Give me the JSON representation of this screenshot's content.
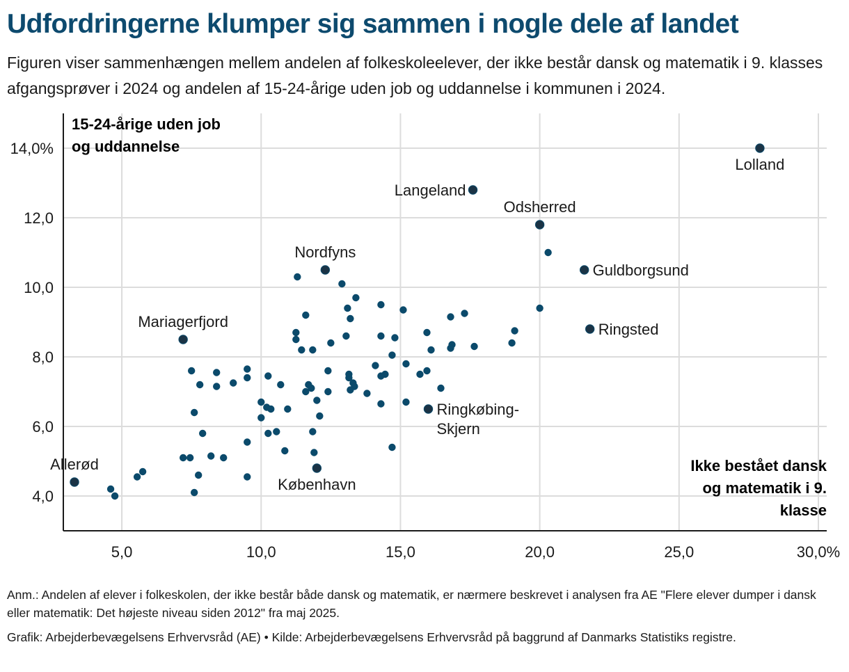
{
  "title": "Udfordringerne klumper sig sammen i nogle dele af landet",
  "subtitle": "Figuren viser sammenhængen mellem andelen af folkeskoleelever, der ikke består dansk og matematik i 9. klasses afgangsprøver i 2024 og andelen af 15-24-årige uden job og uddannelse i kommunen i 2024.",
  "note": "Anm.: Andelen af elever i folkeskolen, der ikke består både dansk og matematik, er nærmere beskrevet i analysen fra AE \"Flere elever dumper i dansk eller matematik: Det højeste niveau siden 2012\" fra maj 2025.",
  "source": "Grafik: Arbejderbevægelsens Erhvervsråd (AE) • Kilde: Arbejderbevægelsens Erhvervsråd på baggrund af Danmarks Statistiks registre.",
  "colors": {
    "title": "#0d4a6e",
    "point": "#0b4a6b",
    "highlight_point": "#1b3345",
    "grid": "#dcdcdc",
    "axis": "#1a1a1a"
  },
  "chart_data": {
    "type": "scatter",
    "xlabel_lines": [
      "Ikke bestået dansk",
      "og matematik i 9.",
      "klasse"
    ],
    "ylabel_lines": [
      "15-24-årige uden job",
      "og uddannelse"
    ],
    "xlim": [
      2.9,
      30.3
    ],
    "ylim": [
      3.0,
      15.0
    ],
    "xticks": [
      5,
      10,
      15,
      20,
      25,
      30
    ],
    "xtick_labels": [
      "5,0",
      "10,0",
      "15,0",
      "20,0",
      "25,0",
      "30,0%"
    ],
    "yticks": [
      4,
      6,
      8,
      10,
      12,
      14
    ],
    "ytick_labels": [
      "4,0",
      "6,0",
      "8,0",
      "10,0",
      "12,0",
      "14,0%"
    ],
    "grid": true,
    "labeled_points": [
      {
        "name": "Lolland",
        "x": 27.9,
        "y": 14.0,
        "anchor": "middle",
        "pos": "below"
      },
      {
        "name": "Langeland",
        "x": 17.6,
        "y": 12.8,
        "anchor": "end",
        "pos": "left"
      },
      {
        "name": "Odsherred",
        "x": 20.0,
        "y": 11.8,
        "anchor": "middle",
        "pos": "above"
      },
      {
        "name": "Nordfyns",
        "x": 12.3,
        "y": 10.5,
        "anchor": "middle",
        "pos": "above"
      },
      {
        "name": "Guldborgsund",
        "x": 21.6,
        "y": 10.5,
        "anchor": "start",
        "pos": "right"
      },
      {
        "name": "Mariagerfjord",
        "x": 7.2,
        "y": 8.5,
        "anchor": "middle",
        "pos": "above"
      },
      {
        "name": "Ringsted",
        "x": 21.8,
        "y": 8.8,
        "anchor": "start",
        "pos": "right"
      },
      {
        "name": "Ringkøbing-",
        "name2": "Skjern",
        "x": 16.0,
        "y": 6.5,
        "anchor": "start",
        "pos": "right"
      },
      {
        "name": "Allerød",
        "x": 3.3,
        "y": 4.4,
        "anchor": "middle",
        "pos": "above"
      },
      {
        "name": "København",
        "x": 12.0,
        "y": 4.8,
        "anchor": "middle",
        "pos": "below"
      }
    ],
    "points": [
      {
        "x": 20.3,
        "y": 11.0
      },
      {
        "x": 11.3,
        "y": 10.3
      },
      {
        "x": 12.9,
        "y": 10.1
      },
      {
        "x": 13.4,
        "y": 9.7
      },
      {
        "x": 14.3,
        "y": 9.5
      },
      {
        "x": 13.1,
        "y": 9.4
      },
      {
        "x": 15.1,
        "y": 9.35
      },
      {
        "x": 20.0,
        "y": 9.4
      },
      {
        "x": 11.6,
        "y": 9.2
      },
      {
        "x": 17.3,
        "y": 9.25
      },
      {
        "x": 16.8,
        "y": 9.15
      },
      {
        "x": 13.2,
        "y": 9.1
      },
      {
        "x": 11.25,
        "y": 8.7
      },
      {
        "x": 15.95,
        "y": 8.7
      },
      {
        "x": 19.1,
        "y": 8.75
      },
      {
        "x": 13.05,
        "y": 8.6
      },
      {
        "x": 14.3,
        "y": 8.6
      },
      {
        "x": 14.8,
        "y": 8.55
      },
      {
        "x": 11.25,
        "y": 8.5
      },
      {
        "x": 12.5,
        "y": 8.4
      },
      {
        "x": 19.0,
        "y": 8.4
      },
      {
        "x": 16.85,
        "y": 8.35
      },
      {
        "x": 17.65,
        "y": 8.3
      },
      {
        "x": 16.8,
        "y": 8.25
      },
      {
        "x": 11.45,
        "y": 8.2
      },
      {
        "x": 11.85,
        "y": 8.2
      },
      {
        "x": 16.1,
        "y": 8.2
      },
      {
        "x": 14.7,
        "y": 8.05
      },
      {
        "x": 15.2,
        "y": 7.8
      },
      {
        "x": 14.1,
        "y": 7.75
      },
      {
        "x": 9.5,
        "y": 7.65
      },
      {
        "x": 7.5,
        "y": 7.6
      },
      {
        "x": 8.4,
        "y": 7.55
      },
      {
        "x": 12.4,
        "y": 7.6
      },
      {
        "x": 15.95,
        "y": 7.6
      },
      {
        "x": 13.15,
        "y": 7.5
      },
      {
        "x": 14.45,
        "y": 7.5
      },
      {
        "x": 14.3,
        "y": 7.45
      },
      {
        "x": 15.7,
        "y": 7.5
      },
      {
        "x": 9.5,
        "y": 7.4
      },
      {
        "x": 10.25,
        "y": 7.45
      },
      {
        "x": 13.15,
        "y": 7.4
      },
      {
        "x": 9.0,
        "y": 7.25
      },
      {
        "x": 7.8,
        "y": 7.2
      },
      {
        "x": 10.7,
        "y": 7.2
      },
      {
        "x": 11.7,
        "y": 7.2
      },
      {
        "x": 13.3,
        "y": 7.25
      },
      {
        "x": 8.4,
        "y": 7.15
      },
      {
        "x": 11.8,
        "y": 7.1
      },
      {
        "x": 13.35,
        "y": 7.15
      },
      {
        "x": 16.45,
        "y": 7.1
      },
      {
        "x": 13.2,
        "y": 7.05
      },
      {
        "x": 11.6,
        "y": 7.0
      },
      {
        "x": 12.4,
        "y": 7.0
      },
      {
        "x": 13.8,
        "y": 6.95
      },
      {
        "x": 10.0,
        "y": 6.7
      },
      {
        "x": 12.0,
        "y": 6.75
      },
      {
        "x": 14.3,
        "y": 6.65
      },
      {
        "x": 15.2,
        "y": 6.7
      },
      {
        "x": 10.2,
        "y": 6.55
      },
      {
        "x": 10.35,
        "y": 6.5
      },
      {
        "x": 10.95,
        "y": 6.5
      },
      {
        "x": 7.6,
        "y": 6.4
      },
      {
        "x": 12.1,
        "y": 6.3
      },
      {
        "x": 10.0,
        "y": 6.25
      },
      {
        "x": 7.9,
        "y": 5.8
      },
      {
        "x": 10.55,
        "y": 5.85
      },
      {
        "x": 11.85,
        "y": 5.85
      },
      {
        "x": 10.25,
        "y": 5.8
      },
      {
        "x": 9.5,
        "y": 5.55
      },
      {
        "x": 14.7,
        "y": 5.4
      },
      {
        "x": 10.85,
        "y": 5.3
      },
      {
        "x": 11.9,
        "y": 5.25
      },
      {
        "x": 8.2,
        "y": 5.15
      },
      {
        "x": 7.45,
        "y": 5.1
      },
      {
        "x": 7.2,
        "y": 5.1
      },
      {
        "x": 8.65,
        "y": 5.1
      },
      {
        "x": 5.75,
        "y": 4.7
      },
      {
        "x": 7.75,
        "y": 4.6
      },
      {
        "x": 5.55,
        "y": 4.55
      },
      {
        "x": 9.5,
        "y": 4.55
      },
      {
        "x": 4.6,
        "y": 4.2
      },
      {
        "x": 7.6,
        "y": 4.1
      },
      {
        "x": 4.75,
        "y": 4.0
      }
    ]
  }
}
